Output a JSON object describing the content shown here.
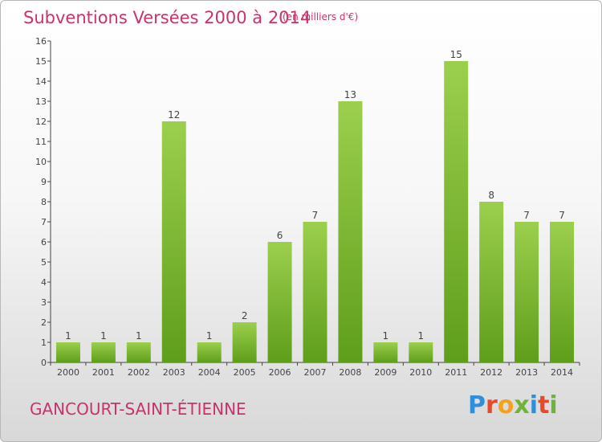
{
  "header": {
    "title": "Subventions Versées 2000 à 2014",
    "unit": "(en milliers d'€)"
  },
  "footer": {
    "commune": "GANCOURT-SAINT-ÉTIENNE",
    "logo_text": "Proxiti"
  },
  "colors": {
    "title": "#c8336e",
    "bar_top": "#9ccf4e",
    "bar_bottom": "#5e9e1a",
    "axis": "#444444"
  },
  "chart_data": {
    "type": "bar",
    "categories": [
      "2000",
      "2001",
      "2002",
      "2003",
      "2004",
      "2005",
      "2006",
      "2007",
      "2008",
      "2009",
      "2010",
      "2011",
      "2012",
      "2013",
      "2014"
    ],
    "values": [
      1,
      1,
      1,
      12,
      1,
      2,
      6,
      7,
      13,
      1,
      1,
      15,
      8,
      7,
      7
    ],
    "yticks": [
      0,
      1,
      2,
      3,
      4,
      5,
      6,
      7,
      8,
      9,
      10,
      11,
      12,
      13,
      14,
      15,
      16
    ],
    "ylim": [
      0,
      16
    ],
    "grid": false,
    "data_labels": true,
    "xlabel": "",
    "ylabel": ""
  }
}
